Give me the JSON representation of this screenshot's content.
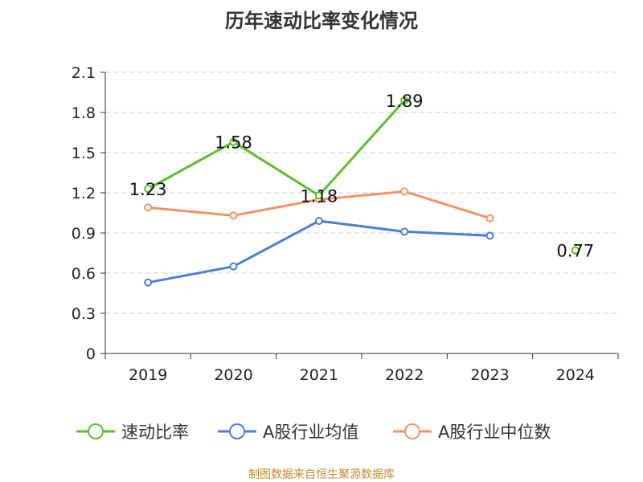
{
  "title": "历年速动比率变化情况",
  "source_note": "制图数据来自恒生聚源数据库",
  "chart_data": {
    "type": "line",
    "title": "历年速动比率变化情况",
    "xlabel": "",
    "ylabel": "",
    "categories": [
      "2019",
      "2020",
      "2021",
      "2022",
      "2023",
      "2024"
    ],
    "ylim": [
      0,
      2.1
    ],
    "yticks": [
      0,
      0.3,
      0.6,
      0.9,
      1.2,
      1.5,
      1.8,
      2.1
    ],
    "ytick_labels": [
      "0",
      "0.3",
      "0.6",
      "0.9",
      "1.2",
      "1.5",
      "1.8",
      "2.1"
    ],
    "grid": true,
    "legend_position": "bottom",
    "series": [
      {
        "name": "速动比率",
        "color": "#5cc02c",
        "values": [
          1.23,
          1.58,
          1.18,
          1.89,
          null,
          0.77
        ],
        "labels": [
          "1.23",
          "1.58",
          "1.18",
          "1.89",
          "",
          "0.77"
        ]
      },
      {
        "name": "A股行业均值",
        "color": "#4a7fd6",
        "values": [
          0.53,
          0.65,
          0.99,
          0.91,
          0.88,
          null
        ]
      },
      {
        "name": "A股行业中位数",
        "color": "#f59260",
        "values": [
          1.09,
          1.03,
          1.15,
          1.21,
          1.01,
          null
        ]
      }
    ]
  }
}
